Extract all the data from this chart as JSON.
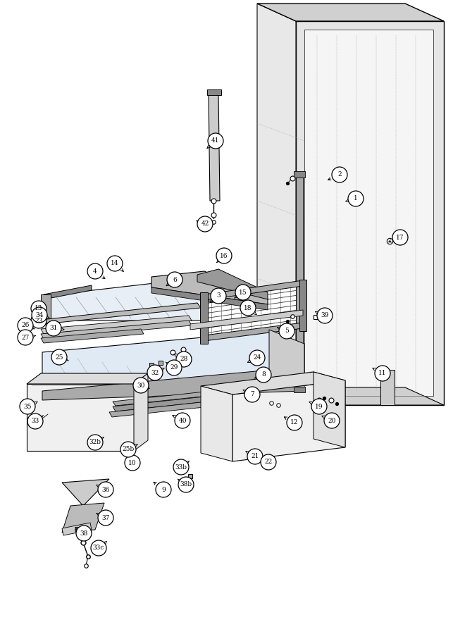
{
  "bg": "#ffffff",
  "callouts": [
    [
      "1",
      505,
      282
    ],
    [
      "2",
      482,
      248
    ],
    [
      "3",
      310,
      420
    ],
    [
      "4",
      135,
      385
    ],
    [
      "5",
      407,
      470
    ],
    [
      "6",
      248,
      397
    ],
    [
      "7",
      358,
      560
    ],
    [
      "8",
      374,
      532
    ],
    [
      "9",
      232,
      695
    ],
    [
      "10",
      188,
      657
    ],
    [
      "11",
      543,
      530
    ],
    [
      "12",
      418,
      600
    ],
    [
      "13",
      55,
      438
    ],
    [
      "14",
      163,
      374
    ],
    [
      "15",
      345,
      415
    ],
    [
      "16",
      318,
      363
    ],
    [
      "17",
      568,
      337
    ],
    [
      "18",
      352,
      437
    ],
    [
      "19",
      453,
      577
    ],
    [
      "20",
      471,
      597
    ],
    [
      "21",
      362,
      648
    ],
    [
      "22",
      381,
      656
    ],
    [
      "23",
      55,
      455
    ],
    [
      "24",
      365,
      508
    ],
    [
      "25",
      84,
      507
    ],
    [
      "25b",
      182,
      638
    ],
    [
      "26",
      36,
      462
    ],
    [
      "27",
      36,
      479
    ],
    [
      "28",
      261,
      510
    ],
    [
      "29",
      247,
      522
    ],
    [
      "30",
      200,
      547
    ],
    [
      "31",
      76,
      466
    ],
    [
      "32",
      220,
      529
    ],
    [
      "32b",
      135,
      628
    ],
    [
      "33",
      50,
      598
    ],
    [
      "33b",
      257,
      663
    ],
    [
      "33c",
      140,
      778
    ],
    [
      "34",
      56,
      447
    ],
    [
      "35",
      39,
      577
    ],
    [
      "36",
      150,
      695
    ],
    [
      "37",
      150,
      735
    ],
    [
      "38",
      119,
      757
    ],
    [
      "38b",
      264,
      688
    ],
    [
      "39",
      461,
      448
    ],
    [
      "40",
      259,
      597
    ],
    [
      "41",
      306,
      200
    ],
    [
      "42",
      291,
      318
    ]
  ]
}
